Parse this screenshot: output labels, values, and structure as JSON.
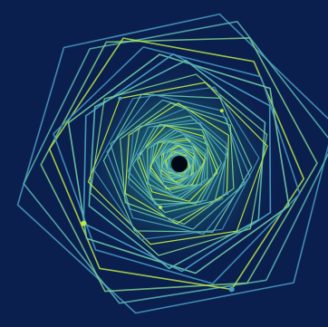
{
  "artwork": {
    "description_kind": "abstract-generative-art",
    "shape": "hexagon",
    "background": "#0b1f4f",
    "palette": [
      "#4a9fc1",
      "#5bb8b0",
      "#7fd18a",
      "#b9e64a",
      "#3f8fb8",
      "#6cc7a0"
    ],
    "center_hole_color": "#000814",
    "rotation_step_deg": 7,
    "scale_ratio": 0.935,
    "ring_count": 44
  }
}
